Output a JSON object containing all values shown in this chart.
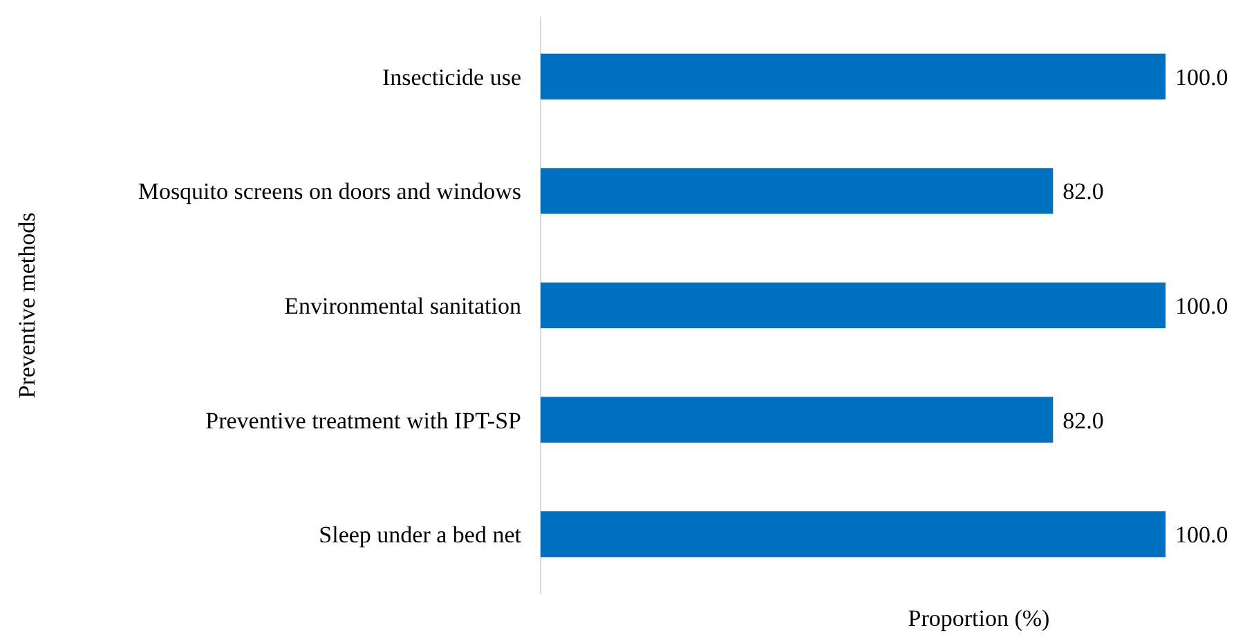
{
  "chart_data": {
    "type": "bar",
    "orientation": "horizontal",
    "ylabel": "Preventive methods",
    "xlabel": "Proportion (%)",
    "categories": [
      "Insecticide use",
      "Mosquito screens on doors and windows",
      "Environmental sanitation",
      "Preventive treatment with IPT-SP",
      "Sleep under a bed net"
    ],
    "values": [
      100.0,
      82.0,
      100.0,
      82.0,
      100.0
    ],
    "value_labels": [
      "100.0",
      "82.0",
      "100.0",
      "82.0",
      "100.0"
    ],
    "color": "#0070c0",
    "tick_labels": "y"
  }
}
